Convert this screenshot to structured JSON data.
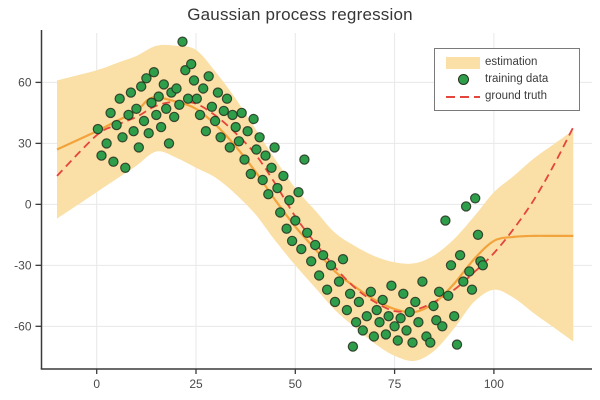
{
  "title": "Gaussian process regression",
  "legend": {
    "items": [
      {
        "label": "estimation",
        "type": "band"
      },
      {
        "label": "training data",
        "type": "point"
      },
      {
        "label": "ground truth",
        "type": "dash"
      }
    ]
  },
  "colors": {
    "band": "#FAE0A7",
    "mean_line": "#F2A33C",
    "truth_line": "#E4453C",
    "point_fill": "#2E9E4B",
    "point_stroke": "#24301F",
    "grid": "#E8E8E8",
    "axis": "#3A3A3A",
    "tick_text": "#4A4A4A"
  },
  "chart_data": {
    "type": "scatter",
    "title": "Gaussian process regression",
    "xlabel": "",
    "ylabel": "",
    "xlim": [
      -13.9,
      124.7
    ],
    "ylim": [
      -81,
      84.3
    ],
    "x_ticks": [
      0,
      25,
      50,
      75,
      100
    ],
    "y_ticks": [
      -60,
      -30,
      0,
      30,
      60
    ],
    "grid": true,
    "legend_position": "top-right",
    "band": {
      "x": [
        -10,
        0,
        5,
        10,
        15,
        20,
        25,
        30,
        35,
        40,
        45,
        50,
        55,
        60,
        65,
        70,
        75,
        80,
        85,
        90,
        95,
        100,
        105,
        110,
        115,
        120
      ],
      "upper": [
        61,
        66,
        69.5,
        73,
        78,
        78,
        76,
        65,
        52,
        37,
        22,
        8,
        -3,
        -14,
        -20.5,
        -25.5,
        -28.5,
        -29,
        -25,
        -17,
        -6,
        6,
        14,
        22.5,
        29.5,
        36.5
      ],
      "lower": [
        -7,
        6,
        12.5,
        19,
        26,
        23,
        18,
        13,
        5,
        -5,
        -18,
        -30,
        -41,
        -52,
        -60.5,
        -68.5,
        -74.5,
        -77,
        -72,
        -61,
        -48,
        -42,
        -46,
        -53.5,
        -60.5,
        -67.5
      ]
    },
    "gp_mean": {
      "x": [
        -10,
        0,
        5,
        10,
        14,
        20,
        25,
        30,
        35,
        40,
        45,
        50,
        55,
        60,
        65,
        70,
        75,
        80,
        85,
        90,
        95,
        100,
        105,
        110,
        115,
        120
      ],
      "y": [
        27,
        36,
        41,
        46,
        52.5,
        50.5,
        47,
        39,
        28.5,
        16,
        2,
        -11,
        -22,
        -33,
        -40.5,
        -47,
        -51.5,
        -53,
        -48.5,
        -39,
        -27,
        -18,
        -16,
        -15.5,
        -15.5,
        -15.5
      ]
    },
    "ground_truth": {
      "x": [
        -10,
        0,
        5,
        10,
        15,
        20,
        25,
        30,
        35,
        40,
        45,
        50,
        55,
        60,
        65,
        70,
        75,
        80,
        85,
        90,
        95,
        100,
        105,
        110,
        115,
        120
      ],
      "y": [
        14,
        34,
        39,
        43,
        48.5,
        50.5,
        49.5,
        43.5,
        35,
        24.5,
        10,
        -6,
        -19,
        -31,
        -41,
        -48,
        -52.5,
        -52,
        -48,
        -42,
        -33.5,
        -24,
        -12,
        2,
        19,
        38
      ]
    },
    "training_data": [
      [
        0.3,
        37
      ],
      [
        1.2,
        24
      ],
      [
        2.5,
        30
      ],
      [
        3.5,
        45
      ],
      [
        4.2,
        21
      ],
      [
        5,
        39
      ],
      [
        5.8,
        52
      ],
      [
        6.5,
        33
      ],
      [
        7.2,
        18
      ],
      [
        8,
        44
      ],
      [
        8.6,
        55
      ],
      [
        9.3,
        36
      ],
      [
        10,
        47
      ],
      [
        10.6,
        28
      ],
      [
        11.2,
        58
      ],
      [
        11.9,
        41
      ],
      [
        12.5,
        62
      ],
      [
        13.1,
        35
      ],
      [
        13.8,
        50
      ],
      [
        14.4,
        65
      ],
      [
        15,
        44
      ],
      [
        15.6,
        53
      ],
      [
        16.2,
        38
      ],
      [
        16.9,
        59
      ],
      [
        17.5,
        47
      ],
      [
        18.2,
        30
      ],
      [
        18.8,
        55
      ],
      [
        19.5,
        43
      ],
      [
        20.1,
        57
      ],
      [
        20.8,
        49
      ],
      [
        21.6,
        80
      ],
      [
        22.3,
        66
      ],
      [
        23,
        52
      ],
      [
        23.8,
        69
      ],
      [
        24.5,
        61
      ],
      [
        25.2,
        52
      ],
      [
        26,
        44
      ],
      [
        26.8,
        57
      ],
      [
        27.5,
        36
      ],
      [
        28.2,
        63
      ],
      [
        29,
        48
      ],
      [
        29.8,
        41
      ],
      [
        30.5,
        55
      ],
      [
        31.2,
        33
      ],
      [
        32,
        46
      ],
      [
        32.8,
        52
      ],
      [
        33.5,
        28
      ],
      [
        34.2,
        44
      ],
      [
        35,
        38
      ],
      [
        35.8,
        31
      ],
      [
        36.5,
        45
      ],
      [
        37.2,
        22
      ],
      [
        38,
        36
      ],
      [
        38.8,
        15
      ],
      [
        39.5,
        42
      ],
      [
        40.2,
        27
      ],
      [
        41,
        33
      ],
      [
        41.8,
        12
      ],
      [
        42.5,
        24
      ],
      [
        43.2,
        5
      ],
      [
        44,
        18
      ],
      [
        44.8,
        28
      ],
      [
        45.5,
        8
      ],
      [
        46.2,
        -4
      ],
      [
        47,
        14
      ],
      [
        47.8,
        -12
      ],
      [
        48.5,
        2
      ],
      [
        49.2,
        -18
      ],
      [
        50,
        -8
      ],
      [
        50.8,
        6
      ],
      [
        51.5,
        -22
      ],
      [
        52.3,
        22
      ],
      [
        53,
        -14
      ],
      [
        54,
        -28
      ],
      [
        55,
        -20
      ],
      [
        56,
        -35
      ],
      [
        57,
        -25
      ],
      [
        58,
        -42
      ],
      [
        59,
        -30
      ],
      [
        60,
        -48
      ],
      [
        61,
        -38
      ],
      [
        62,
        -27
      ],
      [
        63,
        -52
      ],
      [
        63.8,
        -44
      ],
      [
        64.5,
        -70
      ],
      [
        65.3,
        -58
      ],
      [
        66,
        -48
      ],
      [
        67,
        -62
      ],
      [
        68,
        -55
      ],
      [
        69,
        -43
      ],
      [
        69.8,
        -65
      ],
      [
        70.5,
        -52
      ],
      [
        71.2,
        -58
      ],
      [
        72,
        -47
      ],
      [
        72.8,
        -64
      ],
      [
        73.5,
        -55
      ],
      [
        74.2,
        -40
      ],
      [
        75,
        -60
      ],
      [
        75.8,
        -67
      ],
      [
        76.5,
        -56
      ],
      [
        77.2,
        -44
      ],
      [
        78,
        -62
      ],
      [
        78.8,
        -53
      ],
      [
        79.5,
        -68
      ],
      [
        80.2,
        -48
      ],
      [
        81,
        -58
      ],
      [
        82,
        -38
      ],
      [
        83,
        -65
      ],
      [
        84,
        -68
      ],
      [
        84.8,
        -50
      ],
      [
        85.5,
        -57
      ],
      [
        86.2,
        -43
      ],
      [
        87,
        -60
      ],
      [
        87.8,
        -8
      ],
      [
        88.5,
        -45
      ],
      [
        89.2,
        -30
      ],
      [
        90,
        -55
      ],
      [
        90.7,
        -69
      ],
      [
        91.5,
        -25
      ],
      [
        92.3,
        -38
      ],
      [
        93,
        -1
      ],
      [
        93.8,
        -33
      ],
      [
        94.5,
        -42
      ],
      [
        95.3,
        3
      ],
      [
        96,
        -15
      ],
      [
        96.6,
        -28
      ],
      [
        97.2,
        -30
      ]
    ]
  }
}
